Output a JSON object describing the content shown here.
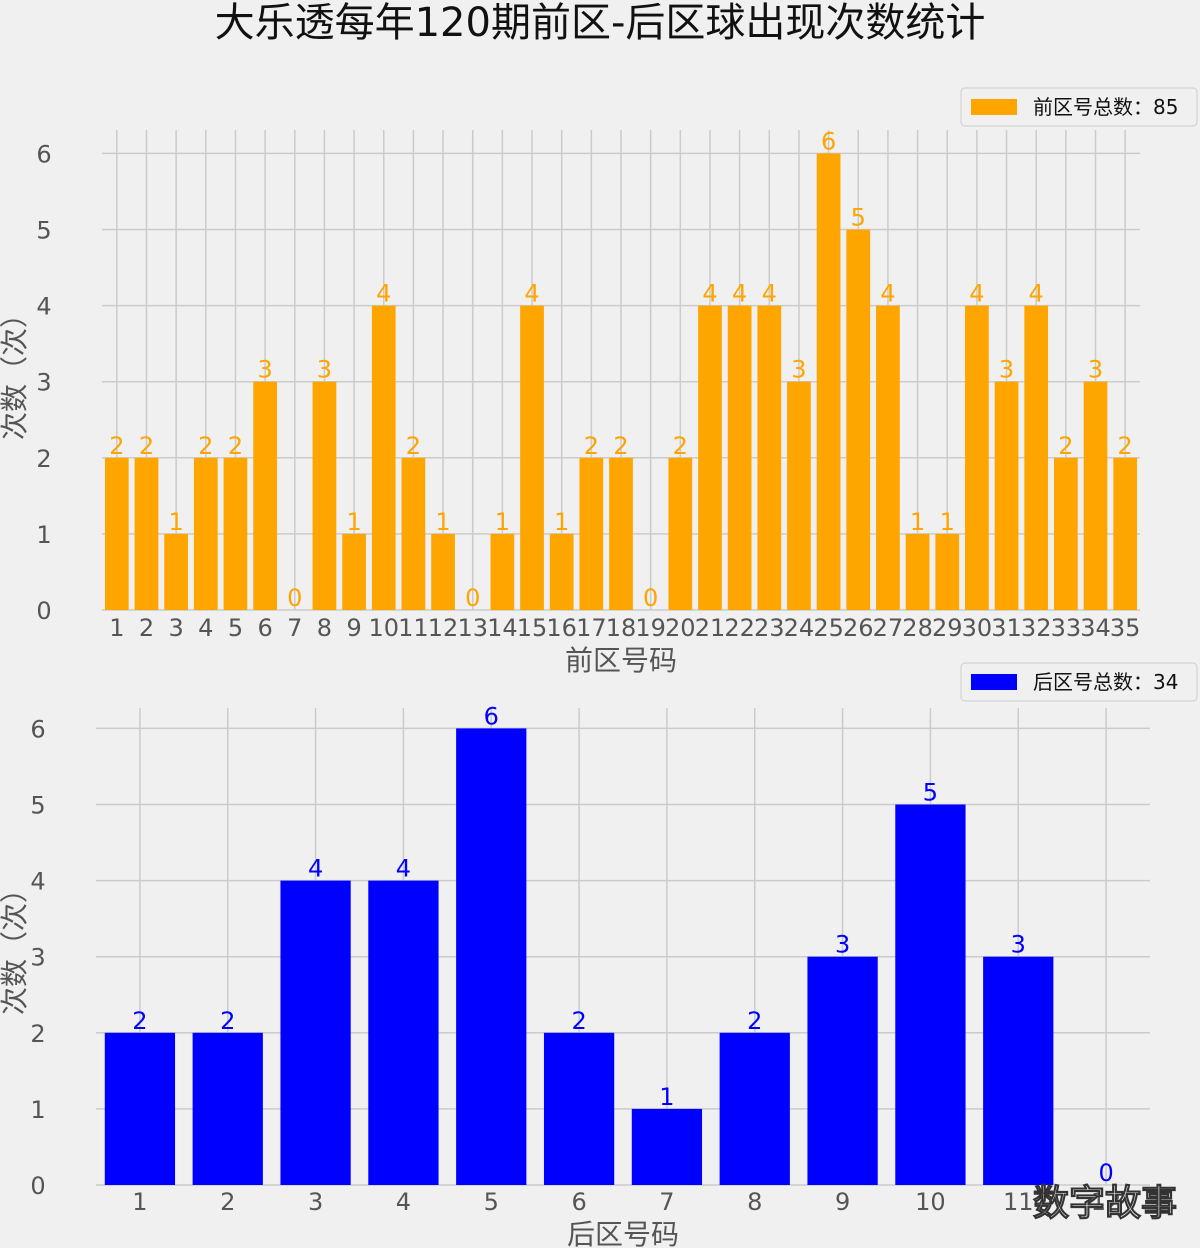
{
  "title": "大乐透每年120期前区-后区球出现次数统计",
  "watermark": "数字故事",
  "chart_data": [
    {
      "type": "bar",
      "color": "#ffa500",
      "xlabel": "前区号码",
      "ylabel": "次数（次）",
      "ylim": [
        0,
        6.3
      ],
      "yticks": [
        "0",
        "1",
        "2",
        "3",
        "4",
        "5",
        "6"
      ],
      "legend": "前区号总数：85",
      "legend_position": "top-right",
      "grid": true,
      "categories": [
        "1",
        "2",
        "3",
        "4",
        "5",
        "6",
        "7",
        "8",
        "9",
        "10",
        "11",
        "12",
        "13",
        "14",
        "15",
        "16",
        "17",
        "18",
        "19",
        "20",
        "21",
        "22",
        "23",
        "24",
        "25",
        "26",
        "27",
        "28",
        "29",
        "30",
        "31",
        "32",
        "33",
        "34",
        "35"
      ],
      "values": [
        2,
        2,
        1,
        2,
        2,
        3,
        0,
        3,
        1,
        4,
        2,
        1,
        0,
        1,
        4,
        1,
        2,
        2,
        0,
        2,
        4,
        4,
        4,
        3,
        6,
        5,
        4,
        1,
        1,
        4,
        3,
        4,
        2,
        3,
        2
      ]
    },
    {
      "type": "bar",
      "color": "#0000ff",
      "xlabel": "后区号码",
      "ylabel": "次数（次）",
      "ylim": [
        0,
        6.3
      ],
      "yticks": [
        "0",
        "1",
        "2",
        "3",
        "4",
        "5",
        "6"
      ],
      "legend": "后区号总数：34",
      "legend_position": "top-right",
      "grid": true,
      "categories": [
        "1",
        "2",
        "3",
        "4",
        "5",
        "6",
        "7",
        "8",
        "9",
        "10",
        "11",
        "12"
      ],
      "values": [
        2,
        2,
        4,
        4,
        6,
        2,
        1,
        2,
        3,
        5,
        3,
        0
      ]
    }
  ]
}
